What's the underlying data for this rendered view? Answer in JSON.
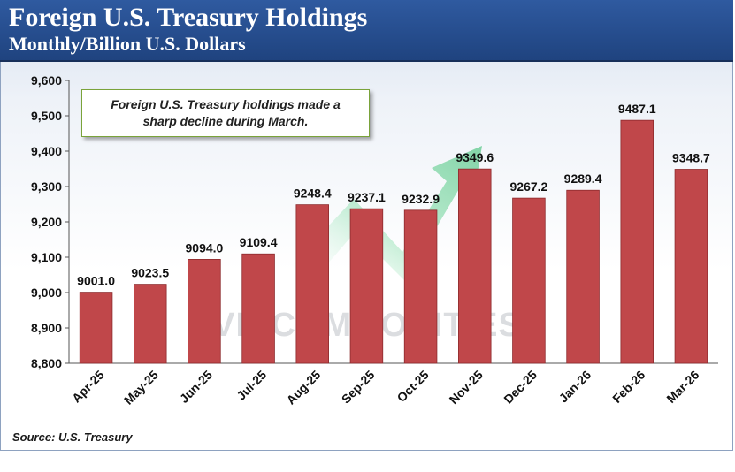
{
  "header": {
    "title": "Foreign U.S. Treasury Holdings",
    "subtitle": "Monthly/Billion U.S. Dollars"
  },
  "annotation": {
    "line1": "Foreign U.S. Treasury holdings made a",
    "line2": "sharp decline during March."
  },
  "source": "Source:  U.S. Treasury",
  "watermark": "VN COMMODITIES",
  "colors": {
    "bar": "#c0474a",
    "bar_edge": "#8d2a2d",
    "header": "#264c8e",
    "arrow": "#6cd39a",
    "annotation_border": "#7aa33a"
  },
  "chart_data": {
    "type": "bar",
    "title": "Foreign U.S. Treasury Holdings",
    "subtitle": "Monthly/Billion U.S. Dollars",
    "categories": [
      "Apr-25",
      "May-25",
      "Jun-25",
      "Jul-25",
      "Aug-25",
      "Sep-25",
      "Oct-25",
      "Nov-25",
      "Dec-25",
      "Jan-26",
      "Feb-26",
      "Mar-26"
    ],
    "values": [
      9001.0,
      9023.5,
      9094.0,
      9109.4,
      9248.4,
      9237.1,
      9232.9,
      9349.6,
      9267.2,
      9289.4,
      9487.1,
      9348.7
    ],
    "data_labels": [
      "9001.0",
      "9023.5",
      "9094.0",
      "9109.4",
      "9248.4",
      "9237.1",
      "9232.9",
      "9349.6",
      "9267.2",
      "9289.4",
      "9487.1",
      "9348.7"
    ],
    "ylim": [
      8800,
      9600
    ],
    "yticks": [
      8800,
      8900,
      9000,
      9100,
      9200,
      9300,
      9400,
      9500,
      9600
    ],
    "ytick_labels": [
      "8,800",
      "8,900",
      "9,000",
      "9,100",
      "9,200",
      "9,300",
      "9,400",
      "9,500",
      "9,600"
    ],
    "grid": false,
    "legend": "none",
    "xlabel": "",
    "ylabel": ""
  }
}
